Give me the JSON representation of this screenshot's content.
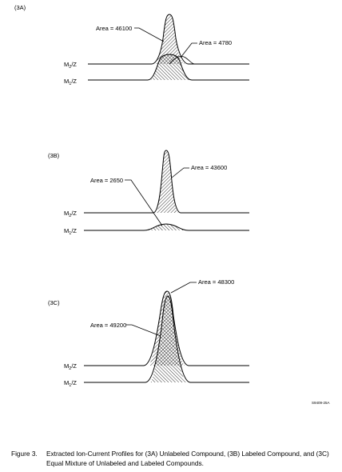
{
  "panels": [
    {
      "label": "(3A)",
      "area_labels": [
        "Area = 46100",
        "Area = 4780"
      ],
      "trace_labels": [
        "M",
        "2",
        "/Z",
        "M",
        "1",
        "/Z"
      ]
    },
    {
      "label": "(3B)",
      "area_labels": [
        "Area = 43600",
        "Area = 2650"
      ],
      "trace_labels": [
        "M",
        "2",
        "/Z",
        "M",
        "1",
        "/Z"
      ]
    },
    {
      "label": "(3C)",
      "area_labels": [
        "Area = 48300",
        "Area = 49200"
      ],
      "trace_labels": [
        "M",
        "2",
        "/Z",
        "M",
        "1",
        "/Z"
      ]
    }
  ],
  "figure_code": "S9409-25A",
  "caption": {
    "label": "Figure 3.",
    "text": "Extracted Ion-Current Profiles for (3A) Unlabeled Compound, (3B) Labeled Compound, and (3C) Equal Mixture of Unlabeled and Labeled Compounds."
  }
}
